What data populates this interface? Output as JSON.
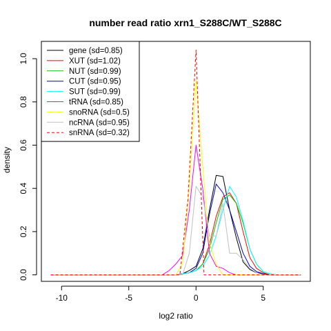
{
  "chart_data": {
    "type": "line",
    "title": "number read ratio xrn1_S288C/WT_S288C",
    "xlabel": "log2 ratio",
    "ylabel": "density",
    "xlim": [
      -11.5,
      8.5
    ],
    "ylim": [
      -0.03,
      1.08
    ],
    "xticks": [
      -10,
      -5,
      0,
      5
    ],
    "xtick_labels": [
      "-10",
      "-5",
      "0",
      "5"
    ],
    "yticks": [
      0.0,
      0.2,
      0.4,
      0.6,
      0.8,
      1.0
    ],
    "ytick_labels": [
      "0.0",
      "0.2",
      "0.4",
      "0.6",
      "0.8",
      "1.0"
    ],
    "grid": false,
    "legend_position": "top-left",
    "series": [
      {
        "name": "gene (sd=0.85)",
        "color": "#000000",
        "dash": "solid",
        "x": [
          -10.8,
          -2.5,
          -1.5,
          -1.0,
          -0.5,
          0.0,
          0.5,
          1.0,
          1.5,
          2.0,
          2.5,
          3.0,
          3.5,
          4.0,
          4.5,
          5.0,
          5.5,
          6.0,
          7.8
        ],
        "y": [
          0.0,
          0.0,
          0.0,
          0.005,
          0.02,
          0.04,
          0.12,
          0.3,
          0.46,
          0.455,
          0.3,
          0.17,
          0.06,
          0.025,
          0.01,
          0.005,
          0.0,
          0.0,
          0.0
        ]
      },
      {
        "name": "XUT (sd=1.02)",
        "color": "#ff0000",
        "dash": "solid",
        "x": [
          -10.8,
          -1.5,
          -1.0,
          -0.5,
          0.0,
          0.5,
          1.0,
          1.5,
          2.0,
          2.5,
          3.0,
          3.5,
          4.0,
          4.5,
          5.0,
          5.5,
          6.0,
          7.8
        ],
        "y": [
          0.0,
          0.0,
          0.005,
          0.01,
          0.02,
          0.05,
          0.14,
          0.27,
          0.36,
          0.38,
          0.33,
          0.2,
          0.08,
          0.03,
          0.01,
          0.0,
          0.0,
          0.0
        ]
      },
      {
        "name": "NUT (sd=0.99)",
        "color": "#00cc00",
        "dash": "solid",
        "x": [
          -10.8,
          -1.5,
          -1.0,
          -0.5,
          0.0,
          0.5,
          1.0,
          1.5,
          2.0,
          2.5,
          3.0,
          3.5,
          4.0,
          4.5,
          5.0,
          5.5,
          6.0,
          7.8
        ],
        "y": [
          0.0,
          0.0,
          0.005,
          0.01,
          0.02,
          0.05,
          0.12,
          0.24,
          0.35,
          0.37,
          0.33,
          0.24,
          0.12,
          0.05,
          0.015,
          0.005,
          0.0,
          0.0
        ]
      },
      {
        "name": "CUT (sd=0.95)",
        "color": "#0000cc",
        "dash": "solid",
        "x": [
          -10.8,
          -1.5,
          -1.0,
          -0.5,
          0.0,
          0.5,
          1.0,
          1.5,
          2.0,
          2.5,
          3.0,
          3.5,
          4.0,
          4.5,
          5.0,
          5.5,
          6.0,
          7.8
        ],
        "y": [
          0.0,
          0.0,
          0.005,
          0.01,
          0.03,
          0.1,
          0.28,
          0.42,
          0.38,
          0.3,
          0.2,
          0.1,
          0.04,
          0.015,
          0.005,
          0.0,
          0.0,
          0.0
        ]
      },
      {
        "name": "SUT (sd=0.99)",
        "color": "#00ffff",
        "dash": "solid",
        "x": [
          -10.8,
          -1.5,
          -1.0,
          -0.5,
          0.0,
          0.5,
          1.0,
          1.5,
          2.0,
          2.5,
          3.0,
          3.5,
          4.0,
          4.5,
          5.0,
          5.5,
          6.0,
          7.8
        ],
        "y": [
          0.0,
          0.0,
          0.005,
          0.01,
          0.02,
          0.04,
          0.09,
          0.18,
          0.3,
          0.41,
          0.36,
          0.25,
          0.12,
          0.05,
          0.015,
          0.005,
          0.0,
          0.0
        ]
      },
      {
        "name": "tRNA (sd=0.85)",
        "color": "#ff00ff",
        "dash": "solid",
        "x": [
          -10.8,
          -2.5,
          -2.0,
          -1.5,
          -1.0,
          -0.5,
          0.0,
          0.5,
          1.0,
          1.5,
          2.0,
          2.5,
          3.0,
          3.5,
          7.8
        ],
        "y": [
          0.0,
          0.0,
          0.02,
          0.05,
          0.09,
          0.3,
          0.6,
          0.4,
          0.1,
          0.04,
          0.03,
          0.01,
          0.0,
          0.0,
          0.0
        ]
      },
      {
        "name": "snoRNA (sd=0.5)",
        "color": "#ffff00",
        "dash": "solid",
        "x": [
          -10.8,
          -1.5,
          -1.0,
          -0.5,
          0.0,
          0.5,
          1.0,
          1.5,
          2.0,
          7.8
        ],
        "y": [
          0.0,
          0.0,
          0.05,
          0.4,
          0.9,
          0.5,
          0.15,
          0.05,
          0.0,
          0.0
        ]
      },
      {
        "name": "ncRNA (sd=0.95)",
        "color": "#c0c0c0",
        "dash": "solid",
        "x": [
          -10.8,
          -1.0,
          -0.5,
          0.0,
          0.5,
          1.0,
          1.5,
          2.0,
          2.5,
          3.0,
          3.5,
          4.0,
          4.5,
          5.0,
          7.8
        ],
        "y": [
          0.0,
          0.0,
          0.1,
          0.41,
          0.36,
          0.18,
          0.18,
          0.33,
          0.1,
          0.1,
          0.07,
          0.03,
          0.01,
          0.0,
          0.0
        ]
      },
      {
        "name": "snRNA (sd=0.32)",
        "color": "#ff0000",
        "dash": "dashed",
        "x": [
          -10.8,
          -1.2,
          -0.6,
          0.0,
          0.6,
          1.2,
          7.8
        ],
        "y": [
          0.0,
          0.0,
          0.35,
          1.04,
          0.0,
          0.0,
          0.0
        ]
      }
    ]
  }
}
